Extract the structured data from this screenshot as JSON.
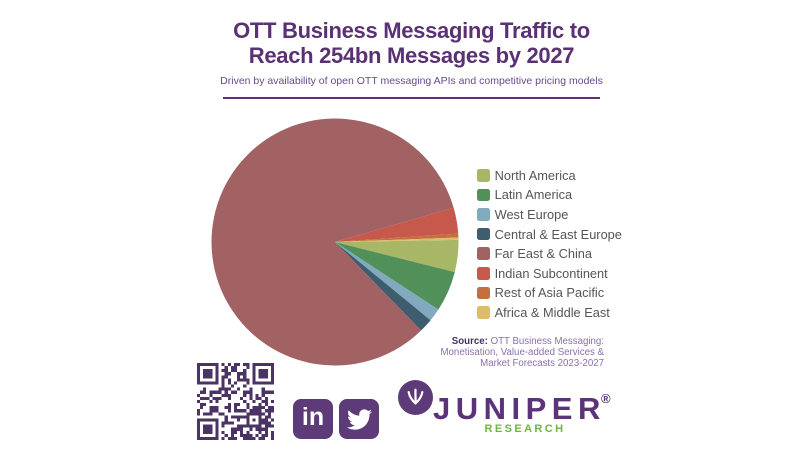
{
  "header": {
    "title_line1": "OTT Business Messaging Traffic to",
    "title_line2": "Reach 254bn Messages by 2027",
    "subtitle": "Driven by availability of open OTT messaging APIs and competitive pricing models"
  },
  "chart_data": {
    "type": "pie",
    "title": "OTT Business Messaging Traffic to Reach 254bn Messages by 2027",
    "subtitle": "Driven by availability of open OTT messaging APIs and competitive pricing models",
    "categories": [
      "North America",
      "Latin America",
      "West Europe",
      "Central & East Europe",
      "Far East & China",
      "Indian Subcontinent",
      "Rest of Asia Pacific",
      "Africa & Middle East"
    ],
    "values_percent": [
      4.2,
      5.3,
      1.7,
      1.8,
      82.8,
      3.4,
      0.5,
      0.3
    ],
    "colors": [
      "#a8b765",
      "#519159",
      "#81aabf",
      "#3e5d6e",
      "#a26263",
      "#c6584c",
      "#c4703e",
      "#ddbc6c"
    ],
    "legend_position": "right",
    "start_angle_deg": 1,
    "direction": "clockwise"
  },
  "source": {
    "label": "Source:",
    "line1_rest": " OTT Business Messaging:",
    "line2": "Monetisation, Value-added Services &",
    "line3": "Market Forecasts 2023-2027"
  },
  "footer": {
    "linkedin_label": "in",
    "brand_name": "JUNIPER",
    "brand_sub": "RESEARCH",
    "registered_mark": "®"
  },
  "brand_colors": {
    "purple": "#5a3174",
    "logo_purple": "#5d3a78",
    "green": "#6fb543",
    "qr_purple": "#4b3365"
  }
}
